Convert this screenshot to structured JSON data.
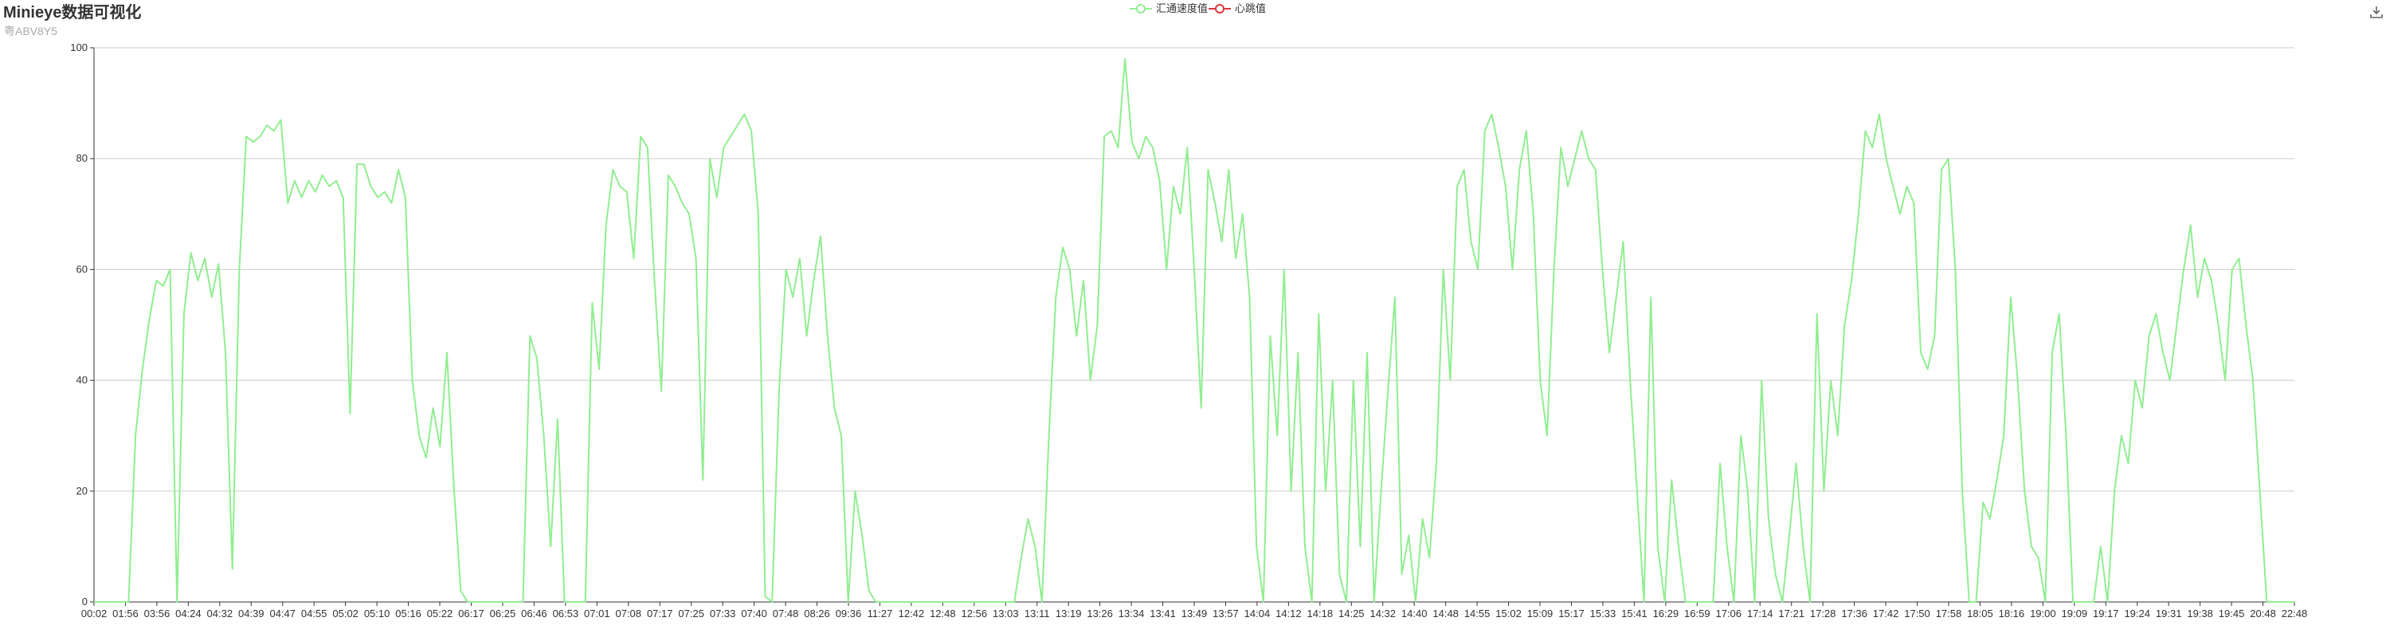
{
  "header": {
    "title": "Minieye数据可视化",
    "subtitle": "粤ABV8Y5"
  },
  "toolbar": {
    "download_icon": "download-icon"
  },
  "colors": {
    "series1": "#90ee90",
    "series2": "#d9373f",
    "axis": "#333333",
    "grid": "#cccccc"
  },
  "chart_data": {
    "type": "line",
    "title": "Minieye数据可视化",
    "subtitle": "粤ABV8Y5",
    "legend_position": "top-center",
    "grid": true,
    "ylim": [
      0,
      100
    ],
    "yticks": [
      0,
      20,
      40,
      60,
      80,
      100
    ],
    "x_ticks": [
      "00:02",
      "01:56",
      "03:56",
      "04:24",
      "04:32",
      "04:39",
      "04:47",
      "04:55",
      "05:02",
      "05:10",
      "05:16",
      "05:22",
      "06:17",
      "06:25",
      "06:46",
      "06:53",
      "07:01",
      "07:08",
      "07:17",
      "07:25",
      "07:33",
      "07:40",
      "07:48",
      "08:26",
      "09:36",
      "11:27",
      "12:42",
      "12:48",
      "12:56",
      "13:03",
      "13:11",
      "13:19",
      "13:26",
      "13:34",
      "13:41",
      "13:49",
      "13:57",
      "14:04",
      "14:12",
      "14:18",
      "14:25",
      "14:32",
      "14:40",
      "14:48",
      "14:55",
      "15:02",
      "15:09",
      "15:17",
      "15:33",
      "15:41",
      "16:29",
      "16:59",
      "17:06",
      "17:14",
      "17:21",
      "17:28",
      "17:36",
      "17:42",
      "17:50",
      "17:58",
      "18:05",
      "18:16",
      "19:00",
      "19:09",
      "19:17",
      "19:24",
      "19:31",
      "19:38",
      "19:45",
      "20:48",
      "22:48"
    ],
    "series": [
      {
        "name": "汇通速度值",
        "values": [
          0,
          0,
          0,
          0,
          0,
          0,
          30,
          42,
          51,
          58,
          57,
          60,
          0,
          52,
          63,
          58,
          62,
          55,
          61,
          45,
          6,
          60,
          84,
          83,
          84,
          86,
          85,
          87,
          72,
          76,
          73,
          76,
          74,
          77,
          75,
          76,
          73,
          34,
          79,
          79,
          75,
          73,
          74,
          72,
          78,
          73,
          40,
          30,
          26,
          35,
          28,
          45,
          21,
          2,
          0,
          0,
          0,
          0,
          0,
          0,
          0,
          0,
          0,
          48,
          44,
          30,
          10,
          33,
          0,
          0,
          0,
          0,
          54,
          42,
          68,
          78,
          75,
          74,
          62,
          84,
          82,
          58,
          38,
          77,
          75,
          72,
          70,
          62,
          22,
          80,
          73,
          82,
          84,
          86,
          88,
          85,
          70,
          1,
          0,
          38,
          60,
          55,
          62,
          48,
          58,
          66,
          48,
          35,
          30,
          0,
          20,
          12,
          2,
          0,
          0,
          0,
          0,
          0,
          0,
          0,
          0,
          0,
          0,
          0,
          0,
          0,
          0,
          0,
          0,
          0,
          0,
          0,
          0,
          0,
          8,
          15,
          10,
          0,
          30,
          55,
          64,
          60,
          48,
          58,
          40,
          50,
          84,
          85,
          82,
          98,
          83,
          80,
          84,
          82,
          76,
          60,
          75,
          70,
          82,
          60,
          35,
          78,
          72,
          65,
          78,
          62,
          70,
          55,
          10,
          0,
          48,
          30,
          60,
          20,
          45,
          10,
          0,
          52,
          20,
          40,
          5,
          0,
          40,
          10,
          45,
          0,
          20,
          38,
          55,
          5,
          12,
          0,
          15,
          8,
          25,
          60,
          40,
          75,
          78,
          65,
          60,
          85,
          88,
          82,
          75,
          60,
          78,
          85,
          70,
          40,
          30,
          60,
          82,
          75,
          80,
          85,
          80,
          78,
          60,
          45,
          55,
          65,
          40,
          20,
          0,
          55,
          10,
          0,
          22,
          10,
          0,
          0,
          0,
          0,
          0,
          25,
          10,
          0,
          30,
          20,
          0,
          40,
          15,
          5,
          0,
          12,
          25,
          10,
          0,
          52,
          20,
          40,
          30,
          50,
          58,
          70,
          85,
          82,
          88,
          80,
          75,
          70,
          75,
          72,
          45,
          42,
          48,
          78,
          80,
          60,
          20,
          0,
          0,
          18,
          15,
          22,
          30,
          55,
          40,
          20,
          10,
          8,
          0,
          45,
          52,
          30,
          0,
          0,
          0,
          0,
          10,
          0,
          20,
          30,
          25,
          40,
          35,
          48,
          52,
          45,
          40,
          50,
          60,
          68,
          55,
          62,
          58,
          50,
          40,
          60,
          62,
          50,
          40,
          20,
          0,
          0,
          0,
          0,
          0
        ]
      },
      {
        "name": "心跳值",
        "values": []
      }
    ]
  }
}
